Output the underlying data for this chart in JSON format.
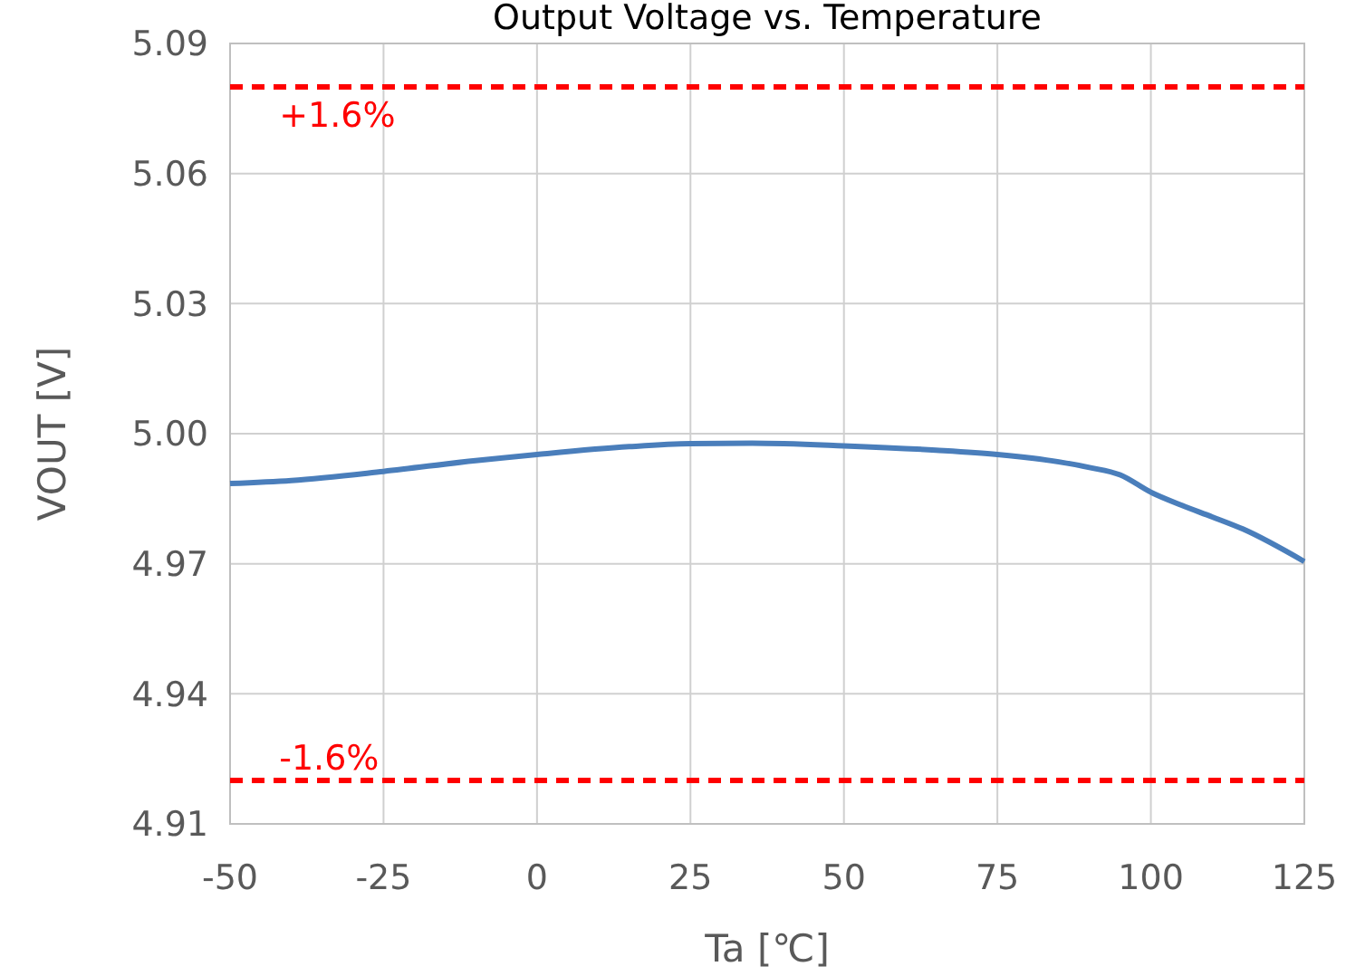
{
  "chart_data": {
    "type": "line",
    "title": "Output Voltage vs. Temperature",
    "xlabel": "Ta [℃]",
    "ylabel": "VOUT [V]",
    "x": [
      -50,
      -40,
      -25,
      -10,
      0,
      15,
      25,
      35,
      50,
      65,
      75,
      85,
      90,
      95,
      100,
      105,
      110,
      115,
      125
    ],
    "series": [
      {
        "color": "#4a7ebb",
        "values": [
          4.9885,
          4.9892,
          4.9913,
          4.9938,
          4.9952,
          4.997,
          4.9977,
          4.9978,
          4.9972,
          4.9962,
          4.9952,
          4.9935,
          4.9922,
          4.9905,
          4.9865,
          4.9835,
          4.9808,
          4.978,
          4.9705
        ]
      }
    ],
    "xlim": [
      -50,
      125
    ],
    "xticks": [
      -50,
      -25,
      0,
      25,
      50,
      75,
      100,
      125
    ],
    "ylim": [
      4.91,
      5.09
    ],
    "yticks": [
      {
        "value": 4.91,
        "label": "4.91"
      },
      {
        "value": 4.94,
        "label": "4.94"
      },
      {
        "value": 4.97,
        "label": "4.97"
      },
      {
        "value": 5.0,
        "label": "5.00"
      },
      {
        "value": 5.03,
        "label": "5.03"
      },
      {
        "value": 5.06,
        "label": "5.06"
      },
      {
        "value": 5.09,
        "label": "5.09"
      }
    ],
    "grid": true,
    "marker": "none",
    "line_style": "solid",
    "ref_lines": [
      {
        "axis": "y",
        "value": 5.08,
        "color": "#ff0000",
        "line_style": "dashed"
      },
      {
        "axis": "y",
        "value": 4.92,
        "color": "#ff0000",
        "line_style": "dashed"
      }
    ],
    "annotations": [
      {
        "text": "+1.6%",
        "x": -42,
        "y": 5.08
      },
      {
        "text": "-1.6%",
        "x": -42,
        "y": 4.92
      }
    ]
  }
}
